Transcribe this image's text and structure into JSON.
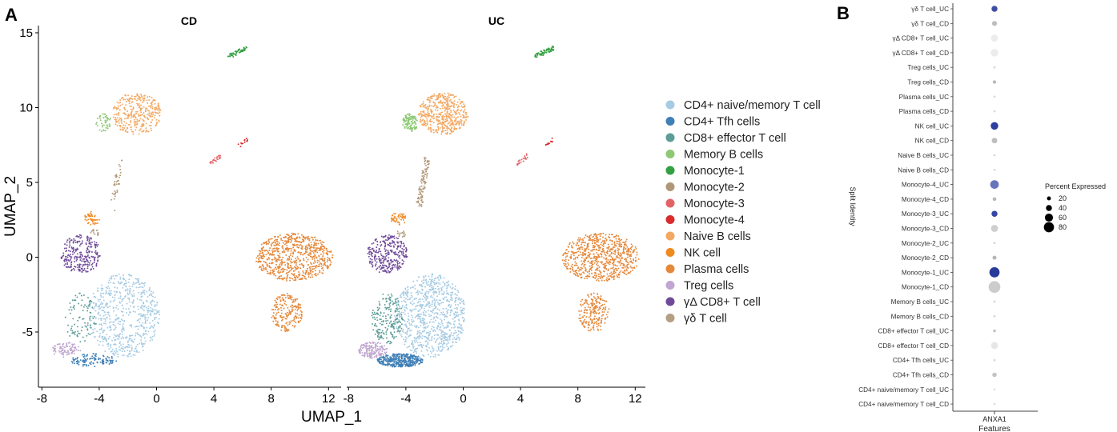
{
  "chart_data": [
    {
      "type": "scatter",
      "panel_letter": "A",
      "xlabel": "UMAP_1",
      "ylabel": "UMAP_2",
      "xlim": [
        -8.5,
        12.8
      ],
      "ylim": [
        -7.8,
        15.3
      ],
      "x_ticks": [
        -8,
        -4,
        0,
        4,
        8,
        12
      ],
      "x_tick_labels": [
        "-8",
        "-4",
        "0",
        "4",
        "8",
        "12"
      ],
      "y_ticks": [
        -5,
        0,
        5,
        10,
        15
      ],
      "y_tick_labels": [
        "-5",
        "0",
        "5",
        "10",
        "15"
      ],
      "facets": [
        {
          "title": "CD",
          "key": "CD"
        },
        {
          "title": "UC",
          "key": "UC"
        }
      ],
      "legend": [
        {
          "label": "CD4+ naive/memory T cell",
          "color": "#a6cbe3"
        },
        {
          "label": "CD4+ Tfh cells",
          "color": "#3f7fb6"
        },
        {
          "label": "CD8+ effector T cell",
          "color": "#5d9d97"
        },
        {
          "label": "Memory B cells",
          "color": "#8dc874"
        },
        {
          "label": "Monocyte-1",
          "color": "#33a041"
        },
        {
          "label": "Monocyte-2",
          "color": "#b09777"
        },
        {
          "label": "Monocyte-3",
          "color": "#e36365"
        },
        {
          "label": "Monocyte-4",
          "color": "#d92b2c"
        },
        {
          "label": "Naive B cells",
          "color": "#f3a862"
        },
        {
          "label": "NK cell",
          "color": "#ef8a1f"
        },
        {
          "label": "Plasma cells",
          "color": "#e5883a"
        },
        {
          "label": "Treg cells",
          "color": "#c0a6d0"
        },
        {
          "label": "γΔ CD8+ T cell",
          "color": "#6f4a99"
        },
        {
          "label": "γδ T cell",
          "color": "#b49f85"
        }
      ],
      "clusters": [
        {
          "type": "CD4+ naive/memory T cell",
          "shape": "ellipse",
          "cx": -2.3,
          "cy": -3.9,
          "rx": 2.5,
          "ry": 2.8,
          "n": {
            "CD": 650,
            "UC": 850
          }
        },
        {
          "type": "CD4+ Tfh cells",
          "shape": "ellipse",
          "cx": -4.4,
          "cy": -6.9,
          "rx": 1.6,
          "ry": 0.45,
          "n": {
            "CD": 110,
            "UC": 380
          }
        },
        {
          "type": "CD8+ effector T cell",
          "shape": "ellipse",
          "cx": -5.3,
          "cy": -4.1,
          "rx": 1.1,
          "ry": 1.7,
          "n": {
            "CD": 90,
            "UC": 200
          }
        },
        {
          "type": "Treg cells",
          "shape": "ellipse",
          "cx": -6.3,
          "cy": -6.2,
          "rx": 1.0,
          "ry": 0.55,
          "n": {
            "CD": 90,
            "UC": 170
          }
        },
        {
          "type": "γΔ CD8+ T cell",
          "shape": "ellipse",
          "cx": -5.3,
          "cy": 0.2,
          "rx": 1.4,
          "ry": 1.3,
          "n": {
            "CD": 260,
            "UC": 300
          }
        },
        {
          "type": "NK cell",
          "shape": "ellipse",
          "cx": -4.5,
          "cy": 2.6,
          "rx": 0.55,
          "ry": 0.45,
          "n": {
            "CD": 45,
            "UC": 45
          }
        },
        {
          "type": "Naive B cells",
          "shape": "ellipse",
          "cx": -1.4,
          "cy": 9.6,
          "rx": 1.75,
          "ry": 1.4,
          "n": {
            "CD": 320,
            "UC": 480
          }
        },
        {
          "type": "Memory B cells",
          "shape": "ellipse",
          "cx": -3.7,
          "cy": 9.0,
          "rx": 0.55,
          "ry": 0.6,
          "n": {
            "CD": 45,
            "UC": 110
          }
        },
        {
          "type": "Monocyte-1",
          "shape": "line",
          "x0": 5.0,
          "y0": 13.4,
          "x1": 6.3,
          "y1": 14.0,
          "spread": 0.15,
          "n": {
            "CD": 50,
            "UC": 65
          }
        },
        {
          "type": "Monocyte-3",
          "shape": "line",
          "x0": 3.7,
          "y0": 6.2,
          "x1": 4.6,
          "y1": 6.9,
          "spread": 0.12,
          "n": {
            "CD": 22,
            "UC": 20
          }
        },
        {
          "type": "Monocyte-4",
          "shape": "line",
          "x0": 5.7,
          "y0": 7.4,
          "x1": 6.3,
          "y1": 7.9,
          "spread": 0.1,
          "n": {
            "CD": 12,
            "UC": 12
          }
        },
        {
          "type": "Monocyte-2",
          "shape": "line",
          "x0": -3.1,
          "y0": 3.3,
          "x1": -2.5,
          "y1": 6.6,
          "spread": 0.2,
          "n": {
            "CD": 35,
            "UC": 100
          }
        },
        {
          "type": "γδ T cell",
          "shape": "ellipse",
          "cx": -4.3,
          "cy": 1.6,
          "rx": 0.3,
          "ry": 0.3,
          "n": {
            "CD": 15,
            "UC": 15
          }
        },
        {
          "type": "Plasma cells",
          "shape": "ellipse",
          "cx": 9.6,
          "cy": 0.0,
          "rx": 2.7,
          "ry": 1.6,
          "n": {
            "CD": 700,
            "UC": 700
          }
        },
        {
          "type": "Plasma cells",
          "shape": "ellipse",
          "cx": 9.1,
          "cy": -3.7,
          "rx": 1.1,
          "ry": 1.3,
          "n": {
            "CD": 200,
            "UC": 200
          }
        }
      ]
    },
    {
      "type": "scatter",
      "subtype": "dotplot",
      "panel_letter": "B",
      "xlabel": "Features",
      "ylabel": "Split Identity",
      "feature": "ANXA1",
      "size_legend_title": "Percent Expressed",
      "size_legend": [
        {
          "label": "20",
          "value": 20
        },
        {
          "label": "40",
          "value": 40
        },
        {
          "label": "60",
          "value": 60
        },
        {
          "label": "80",
          "value": 80
        }
      ],
      "rows": [
        {
          "label": "γδ T cell_UC",
          "pct": 40,
          "color": "#3f4ea5"
        },
        {
          "label": "γδ T cell_CD",
          "pct": 30,
          "color": "#bdbdbd"
        },
        {
          "label": "γΔ CD8+ T cell_UC",
          "pct": 50,
          "color": "#ececec"
        },
        {
          "label": "γΔ CD8+ T cell_CD",
          "pct": 55,
          "color": "#ececec"
        },
        {
          "label": "Treg cells_UC",
          "pct": 3,
          "color": "#d4d4d4"
        },
        {
          "label": "Treg cells_CD",
          "pct": 15,
          "color": "#b8b8b8"
        },
        {
          "label": "Plasma cells_UC",
          "pct": 2,
          "color": "#d4d4d4"
        },
        {
          "label": "Plasma cells_CD",
          "pct": 2,
          "color": "#d4d4d4"
        },
        {
          "label": "NK cell_UC",
          "pct": 55,
          "color": "#2d3fa1"
        },
        {
          "label": "NK cell_CD",
          "pct": 35,
          "color": "#bdbdbd"
        },
        {
          "label": "Naive B cells_UC",
          "pct": 2,
          "color": "#d4d4d4"
        },
        {
          "label": "Naive B cells_CD",
          "pct": 2,
          "color": "#d4d4d4"
        },
        {
          "label": "Monocyte-4_UC",
          "pct": 65,
          "color": "#6875bb"
        },
        {
          "label": "Monocyte-4_CD",
          "pct": 18,
          "color": "#b8b8b8"
        },
        {
          "label": "Monocyte-3_UC",
          "pct": 40,
          "color": "#3546a5"
        },
        {
          "label": "Monocyte-3_CD",
          "pct": 50,
          "color": "#cfcfcf"
        },
        {
          "label": "Monocyte-2_UC",
          "pct": 3,
          "color": "#d4d4d4"
        },
        {
          "label": "Monocyte-2_CD",
          "pct": 20,
          "color": "#b5b5b5"
        },
        {
          "label": "Monocyte-1_UC",
          "pct": 80,
          "color": "#263b9a"
        },
        {
          "label": "Monocyte-1_CD",
          "pct": 95,
          "color": "#cccccc"
        },
        {
          "label": "Memory B cells_UC",
          "pct": 3,
          "color": "#d4d4d4"
        },
        {
          "label": "Memory B cells_CD",
          "pct": 3,
          "color": "#d4d4d4"
        },
        {
          "label": "CD8+ effector T cell_UC",
          "pct": 10,
          "color": "#c4c4c4"
        },
        {
          "label": "CD8+ effector T cell_CD",
          "pct": 50,
          "color": "#e6e6e6"
        },
        {
          "label": "CD4+ Tfh cells_UC",
          "pct": 3,
          "color": "#d4d4d4"
        },
        {
          "label": "CD4+ Tfh cells_CD",
          "pct": 25,
          "color": "#c4c4c4"
        },
        {
          "label": "CD4+ naive/memory T cell_UC",
          "pct": 1,
          "color": "#d9d9d9"
        },
        {
          "label": "CD4+ naive/memory T cell_CD",
          "pct": 1,
          "color": "#d9d9d9"
        }
      ]
    }
  ]
}
